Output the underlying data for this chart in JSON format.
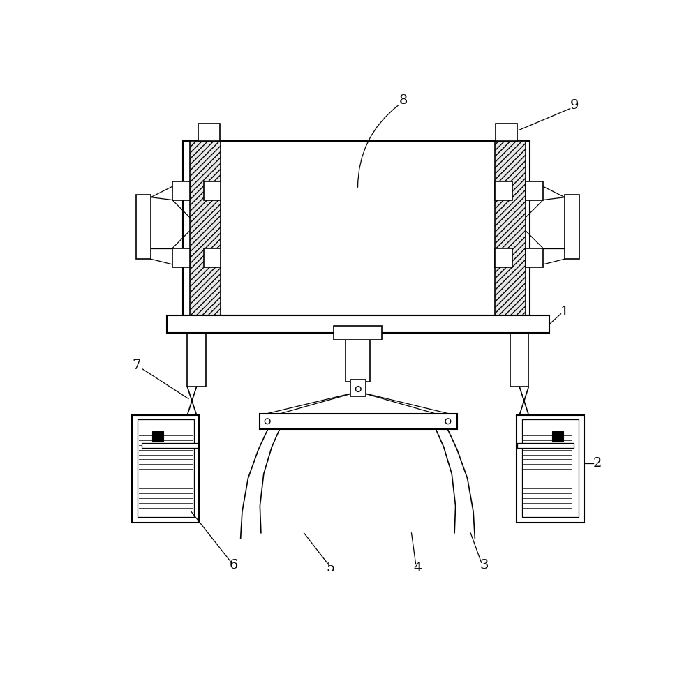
{
  "bg_color": "#ffffff",
  "line_color": "#000000",
  "figsize": [
    10.0,
    9.76
  ],
  "dpi": 100,
  "labels": [
    "1",
    "2",
    "3",
    "4",
    "5",
    "6",
    "7",
    "8",
    "9"
  ]
}
